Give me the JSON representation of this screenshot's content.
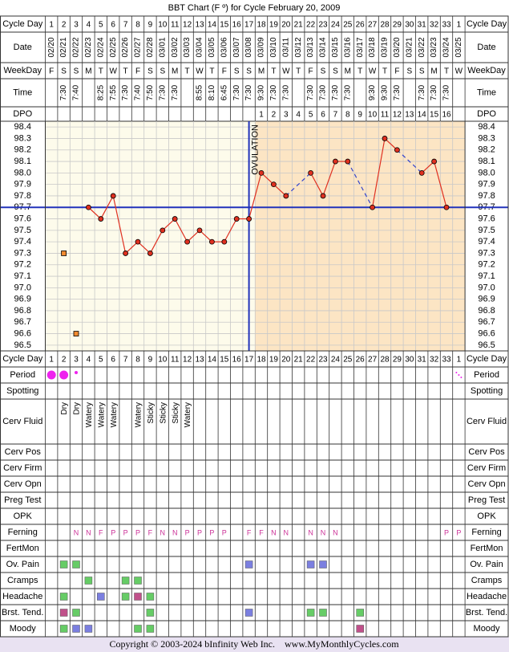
{
  "title": "BBT Chart (F º) for Cycle February 20, 2009",
  "footer": "Copyright © 2003-2024 bInfinity Web Inc.    www.MyMonthlyCycles.com",
  "row_labels": {
    "cycle_day": "Cycle Day",
    "date": "Date",
    "weekday": "WeekDay",
    "time": "Time",
    "dpo": "DPO"
  },
  "days": {
    "cycle_day": [
      1,
      2,
      3,
      4,
      5,
      6,
      7,
      8,
      9,
      10,
      11,
      12,
      13,
      14,
      15,
      16,
      17,
      18,
      19,
      20,
      21,
      22,
      23,
      24,
      25,
      26,
      27,
      28,
      29,
      30,
      31,
      32,
      33,
      1
    ],
    "date": [
      "02/20",
      "02/21",
      "02/22",
      "02/23",
      "02/24",
      "02/25",
      "02/26",
      "02/27",
      "02/28",
      "03/01",
      "03/02",
      "03/03",
      "03/04",
      "03/05",
      "03/06",
      "03/07",
      "03/08",
      "03/09",
      "03/10",
      "03/11",
      "03/12",
      "03/13",
      "03/14",
      "03/15",
      "03/16",
      "03/17",
      "03/18",
      "03/19",
      "03/20",
      "03/21",
      "03/22",
      "03/23",
      "03/24",
      "03/25"
    ],
    "weekday": [
      "F",
      "S",
      "S",
      "M",
      "T",
      "W",
      "T",
      "F",
      "S",
      "S",
      "M",
      "T",
      "W",
      "T",
      "F",
      "S",
      "S",
      "M",
      "T",
      "W",
      "T",
      "F",
      "S",
      "S",
      "M",
      "T",
      "W",
      "T",
      "F",
      "S",
      "S",
      "M",
      "T",
      "W"
    ],
    "time": [
      null,
      "7:30",
      "7:40",
      null,
      "8:25",
      "7:55",
      "7:30",
      "7:40",
      "7:50",
      "7:30",
      "7:30",
      null,
      "8:55",
      "8:10",
      "6:45",
      "7:30",
      "7:30",
      "9:30",
      "7:30",
      "7:30",
      null,
      "7:30",
      "7:30",
      "7:30",
      "7:30",
      null,
      "9:30",
      "9:30",
      "7:30",
      null,
      "7:30",
      "7:30",
      "7:30",
      null
    ],
    "dpo": [
      null,
      null,
      null,
      null,
      null,
      null,
      null,
      null,
      null,
      null,
      null,
      null,
      null,
      null,
      null,
      null,
      null,
      1,
      2,
      3,
      4,
      5,
      6,
      7,
      8,
      9,
      10,
      11,
      12,
      13,
      14,
      15,
      16,
      null
    ]
  },
  "chart_data": {
    "type": "line",
    "values": [
      null,
      null,
      null,
      97.7,
      97.6,
      97.8,
      97.3,
      97.4,
      97.3,
      97.5,
      97.6,
      97.4,
      97.5,
      97.4,
      97.4,
      97.6,
      97.6,
      98.0,
      97.9,
      97.8,
      null,
      98.0,
      97.8,
      98.1,
      98.1,
      null,
      97.7,
      98.3,
      98.2,
      null,
      98.0,
      98.1,
      97.7,
      null
    ],
    "excluded_values": [
      null,
      97.3,
      96.6,
      null,
      null,
      null,
      null,
      null,
      null,
      null,
      null,
      null,
      null,
      null,
      null,
      null,
      null,
      null,
      null,
      null,
      null,
      null,
      null,
      null,
      null,
      null,
      null,
      null,
      null,
      null,
      null,
      null,
      null,
      null
    ],
    "color": "#e03020",
    "gap_color": "#3344cc",
    "excluded_color": "#f08a30",
    "coverline": 97.7,
    "coverline_color": "#2233bb",
    "ovulation_cycle_day": 17,
    "ovulation_label": "OVULATION",
    "ylim": [
      96.45,
      98.45
    ],
    "yticks": [
      96.5,
      96.6,
      96.7,
      96.8,
      96.9,
      {
        "value": 97,
        "label": "97.0"
      },
      97.1,
      97.2,
      97.3,
      97.4,
      97.5,
      97.6,
      97.7,
      97.8,
      97.9,
      {
        "value": 98,
        "label": "98.0"
      },
      98.1,
      98.2,
      98.3,
      98.4
    ],
    "grid": true
  },
  "lower_rows": [
    {
      "label": "Period",
      "kind": "period",
      "cells": [
        "heavy",
        "heavy",
        "light",
        null,
        null,
        null,
        null,
        null,
        null,
        null,
        null,
        null,
        null,
        null,
        null,
        null,
        null,
        null,
        null,
        null,
        null,
        null,
        null,
        null,
        null,
        null,
        null,
        null,
        null,
        null,
        null,
        null,
        null,
        "spotting"
      ]
    },
    {
      "label": "Spotting",
      "kind": "empty"
    },
    {
      "label": "Cerv Fluid",
      "kind": "vertical",
      "cells": [
        null,
        "Dry",
        "Dry",
        "Watery",
        "Watery",
        "Watery",
        null,
        "Watery",
        "Sticky",
        "Sticky",
        "Sticky",
        "Watery",
        null,
        null,
        null,
        null,
        null,
        null,
        null,
        null,
        null,
        null,
        null,
        null,
        null,
        null,
        null,
        null,
        null,
        null,
        null,
        null,
        null,
        null
      ]
    },
    {
      "label": "Cerv Pos",
      "kind": "empty"
    },
    {
      "label": "Cerv Firm",
      "kind": "empty"
    },
    {
      "label": "Cerv Opn",
      "kind": "empty"
    },
    {
      "label": "Preg Test",
      "kind": "empty"
    },
    {
      "label": "OPK",
      "kind": "empty"
    },
    {
      "label": "Ferning",
      "kind": "text",
      "cells": [
        null,
        null,
        "N",
        "N",
        "F",
        "P",
        "P",
        "P",
        "F",
        "N",
        "N",
        "P",
        "P",
        "P",
        "P",
        null,
        "F",
        "F",
        "N",
        "N",
        null,
        "N",
        "N",
        "N",
        null,
        null,
        null,
        null,
        null,
        null,
        null,
        null,
        "P",
        "P"
      ]
    },
    {
      "label": "FertMon",
      "kind": "empty"
    },
    {
      "label": "Ov. Pain",
      "kind": "color",
      "cells": [
        null,
        "#66cc66",
        "#66cc66",
        null,
        null,
        null,
        null,
        null,
        null,
        null,
        null,
        null,
        null,
        null,
        null,
        null,
        "#7b7fe0",
        null,
        null,
        null,
        null,
        "#7b7fe0",
        "#7b7fe0",
        null,
        null,
        null,
        null,
        null,
        null,
        null,
        null,
        null,
        null,
        null
      ]
    },
    {
      "label": "Cramps",
      "kind": "color",
      "cells": [
        null,
        null,
        null,
        "#66cc66",
        null,
        null,
        "#66cc66",
        "#66cc66",
        null,
        null,
        null,
        null,
        null,
        null,
        null,
        null,
        null,
        null,
        null,
        null,
        null,
        null,
        null,
        null,
        null,
        null,
        null,
        null,
        null,
        null,
        null,
        null,
        null,
        null
      ]
    },
    {
      "label": "Headache",
      "kind": "color",
      "cells": [
        null,
        "#66cc66",
        null,
        null,
        "#7b7fe0",
        null,
        "#66cc66",
        "#c0508a",
        "#66cc66",
        null,
        null,
        null,
        null,
        null,
        null,
        null,
        null,
        null,
        null,
        null,
        null,
        null,
        null,
        null,
        null,
        null,
        null,
        null,
        null,
        null,
        null,
        null,
        null,
        null
      ]
    },
    {
      "label": "Brst. Tend.",
      "kind": "color",
      "cells": [
        null,
        "#c0508a",
        "#66cc66",
        null,
        null,
        null,
        null,
        null,
        "#66cc66",
        null,
        null,
        null,
        null,
        null,
        null,
        null,
        "#7b7fe0",
        null,
        null,
        null,
        null,
        "#66cc66",
        "#66cc66",
        null,
        null,
        "#66cc66",
        null,
        null,
        null,
        null,
        null,
        null,
        null,
        null
      ]
    },
    {
      "label": "Moody",
      "kind": "color",
      "cells": [
        null,
        "#66cc66",
        "#7b7fe0",
        "#7b7fe0",
        null,
        null,
        null,
        "#66cc66",
        "#66cc66",
        null,
        null,
        null,
        null,
        null,
        null,
        null,
        null,
        null,
        null,
        null,
        null,
        null,
        null,
        null,
        null,
        "#c0508a",
        null,
        null,
        null,
        null,
        null,
        null,
        null,
        null
      ]
    }
  ]
}
